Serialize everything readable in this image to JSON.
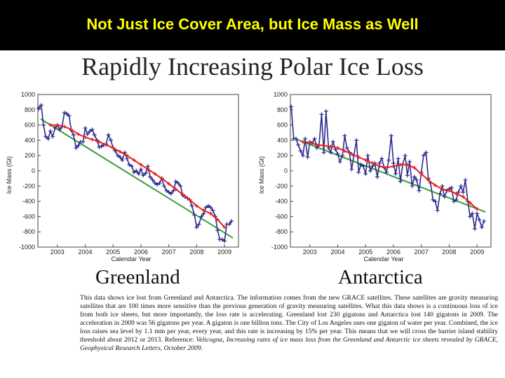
{
  "slide": {
    "header_title": "Not Just Ice Cover Area, but Ice Mass as Well",
    "main_title": "Rapidly Increasing Polar Ice Loss",
    "body_lead": "This data shows ice lost from Greenland and Antarctica. The information comes from the new GRACE satellites. These satellites are gravity measuring satellites that are 100 times more sensitive than the previous generation of gravity measuring satellites. What this data shows is a continuous loss of ice from both ice sheets, but more importantly, the loss rate is accelerating. Greenland lost 230 gigatons and Antarctica lost 140 gigatons in 2009. The acceleration in 2009 was 56 gigatons per year. A gigaton is one billion tons. The City of Los Angeles uses one gigaton of water per year. Combined, the ice loss raises sea level by 1.1 mm per year, every year, and this rate is increasing by 15% per year. This means that we will cross the barrier island stability threshold about 2012 or 2013. Reference: ",
    "body_reference": "Velicogna, Increasing rates of ice mass loss from the Greenland and Antarctic ice sheets revealed by GRACE, Geophysical Research Letters, October 2009",
    "body_end": "."
  },
  "colors": {
    "header_bg": "#000000",
    "header_text": "#ffff00",
    "monthly_series": "#2b2b8c",
    "smoothed_series": "#e8201c",
    "trend_line": "#3a9a3a"
  },
  "chart_data": [
    {
      "type": "line",
      "label": "Greenland",
      "xlabel": "Calendar Year",
      "ylabel": "Ice Mass (Gt)",
      "xlim": [
        2002.3,
        2009.5
      ],
      "ylim": [
        -1000,
        1000
      ],
      "xticks": [
        2003,
        2004,
        2005,
        2006,
        2007,
        2008,
        2009
      ],
      "yticks": [
        1000,
        800,
        600,
        400,
        200,
        0,
        -200,
        -400,
        -600,
        -800,
        -1000
      ],
      "grid": false,
      "series": [
        {
          "role": "monthly",
          "x": [
            2002.33,
            2002.42,
            2002.5,
            2002.58,
            2002.67,
            2002.75,
            2002.83,
            2002.92,
            2003.0,
            2003.08,
            2003.17,
            2003.25,
            2003.33,
            2003.42,
            2003.5,
            2003.58,
            2003.67,
            2003.75,
            2003.83,
            2003.92,
            2004.0,
            2004.08,
            2004.17,
            2004.25,
            2004.33,
            2004.42,
            2004.5,
            2004.58,
            2004.67,
            2004.75,
            2004.83,
            2004.92,
            2005.0,
            2005.08,
            2005.17,
            2005.25,
            2005.33,
            2005.42,
            2005.5,
            2005.58,
            2005.67,
            2005.75,
            2005.83,
            2005.92,
            2006.0,
            2006.08,
            2006.17,
            2006.25,
            2006.33,
            2006.42,
            2006.5,
            2006.58,
            2006.67,
            2006.75,
            2006.83,
            2006.92,
            2007.0,
            2007.08,
            2007.17,
            2007.25,
            2007.33,
            2007.42,
            2007.5,
            2007.58,
            2007.67,
            2007.75,
            2007.83,
            2007.92,
            2008.0,
            2008.08,
            2008.17,
            2008.25,
            2008.33,
            2008.42,
            2008.5,
            2008.58,
            2008.67,
            2008.75,
            2008.83,
            2008.92,
            2009.0,
            2009.08,
            2009.17,
            2009.25
          ],
          "values": [
            820,
            860,
            600,
            450,
            420,
            520,
            450,
            560,
            600,
            540,
            580,
            760,
            750,
            720,
            530,
            470,
            300,
            330,
            380,
            380,
            560,
            480,
            520,
            540,
            470,
            400,
            310,
            320,
            340,
            350,
            470,
            400,
            300,
            260,
            200,
            180,
            140,
            240,
            160,
            80,
            60,
            -20,
            0,
            -40,
            20,
            -60,
            -30,
            60,
            -80,
            -120,
            -160,
            -180,
            -160,
            -100,
            -200,
            -260,
            -280,
            -300,
            -260,
            -140,
            -160,
            -200,
            -320,
            -340,
            -360,
            -380,
            -460,
            -580,
            -740,
            -700,
            -600,
            -560,
            -480,
            -460,
            -480,
            -520,
            -600,
            -780,
            -900,
            -900,
            -920,
            -700,
            -700,
            -660
          ]
        },
        {
          "role": "smoothed",
          "x": [
            2002.75,
            2003.0,
            2003.25,
            2003.5,
            2003.75,
            2004.0,
            2004.25,
            2004.5,
            2004.75,
            2005.0,
            2005.25,
            2005.5,
            2005.75,
            2006.0,
            2006.25,
            2006.5,
            2006.75,
            2007.0,
            2007.25,
            2007.5,
            2007.75,
            2008.0,
            2008.25,
            2008.5,
            2008.75,
            2009.0
          ],
          "values": [
            600,
            600,
            580,
            540,
            480,
            440,
            410,
            380,
            340,
            300,
            250,
            200,
            140,
            80,
            20,
            -40,
            -100,
            -170,
            -240,
            -310,
            -380,
            -460,
            -520,
            -560,
            -640,
            -740
          ]
        },
        {
          "role": "trend",
          "x": [
            2002.4,
            2009.3
          ],
          "values": [
            680,
            -880
          ]
        }
      ]
    },
    {
      "type": "line",
      "label": "Antarctica",
      "xlabel": "Calendar Year",
      "ylabel": "Ice Mass (Gt)",
      "xlim": [
        2002.3,
        2009.5
      ],
      "ylim": [
        -1000,
        1000
      ],
      "xticks": [
        2003,
        2004,
        2005,
        2006,
        2007,
        2008,
        2009
      ],
      "yticks": [
        1000,
        800,
        600,
        400,
        200,
        0,
        -200,
        -400,
        -600,
        -800,
        -1000
      ],
      "grid": false,
      "series": [
        {
          "role": "monthly",
          "x": [
            2002.33,
            2002.42,
            2002.5,
            2002.58,
            2002.67,
            2002.75,
            2002.83,
            2002.92,
            2003.0,
            2003.08,
            2003.17,
            2003.25,
            2003.33,
            2003.42,
            2003.5,
            2003.58,
            2003.67,
            2003.75,
            2003.83,
            2003.92,
            2004.0,
            2004.08,
            2004.17,
            2004.25,
            2004.33,
            2004.42,
            2004.5,
            2004.58,
            2004.67,
            2004.75,
            2004.83,
            2004.92,
            2005.0,
            2005.08,
            2005.17,
            2005.25,
            2005.33,
            2005.42,
            2005.5,
            2005.58,
            2005.67,
            2005.75,
            2005.83,
            2005.92,
            2006.0,
            2006.08,
            2006.17,
            2006.25,
            2006.33,
            2006.42,
            2006.5,
            2006.58,
            2006.67,
            2006.75,
            2006.83,
            2006.92,
            2007.0,
            2007.08,
            2007.17,
            2007.25,
            2007.33,
            2007.42,
            2007.5,
            2007.58,
            2007.67,
            2007.75,
            2007.83,
            2007.92,
            2008.0,
            2008.08,
            2008.17,
            2008.25,
            2008.33,
            2008.42,
            2008.5,
            2008.58,
            2008.67,
            2008.75,
            2008.83,
            2008.92,
            2009.0,
            2009.08,
            2009.17,
            2009.25
          ],
          "values": [
            840,
            420,
            420,
            340,
            260,
            200,
            420,
            180,
            380,
            360,
            420,
            300,
            340,
            740,
            240,
            780,
            300,
            240,
            380,
            280,
            220,
            120,
            200,
            460,
            300,
            240,
            20,
            200,
            400,
            -20,
            80,
            60,
            -40,
            200,
            0,
            60,
            100,
            -80,
            100,
            160,
            40,
            -20,
            140,
            460,
            100,
            -40,
            160,
            -140,
            80,
            200,
            -60,
            120,
            -200,
            -80,
            -120,
            -260,
            -20,
            200,
            240,
            -100,
            -160,
            -380,
            -400,
            -520,
            -300,
            -200,
            -340,
            -260,
            -240,
            -220,
            -400,
            -380,
            -280,
            -200,
            -280,
            -120,
            -400,
            -600,
            -560,
            -760,
            -560,
            -640,
            -740,
            -660
          ]
        },
        {
          "role": "smoothed",
          "x": [
            2002.75,
            2003.0,
            2003.25,
            2003.5,
            2003.75,
            2004.0,
            2004.25,
            2004.5,
            2004.75,
            2005.0,
            2005.25,
            2005.5,
            2005.75,
            2006.0,
            2006.25,
            2006.5,
            2006.75,
            2007.0,
            2007.25,
            2007.5,
            2007.75,
            2008.0,
            2008.25,
            2008.5,
            2008.75,
            2009.0
          ],
          "values": [
            380,
            370,
            340,
            330,
            320,
            300,
            260,
            220,
            180,
            140,
            100,
            60,
            40,
            60,
            80,
            80,
            40,
            -40,
            -120,
            -190,
            -240,
            -260,
            -300,
            -340,
            -420,
            -500
          ]
        },
        {
          "role": "trend",
          "x": [
            2002.4,
            2009.3
          ],
          "values": [
            430,
            -540
          ]
        }
      ]
    }
  ]
}
